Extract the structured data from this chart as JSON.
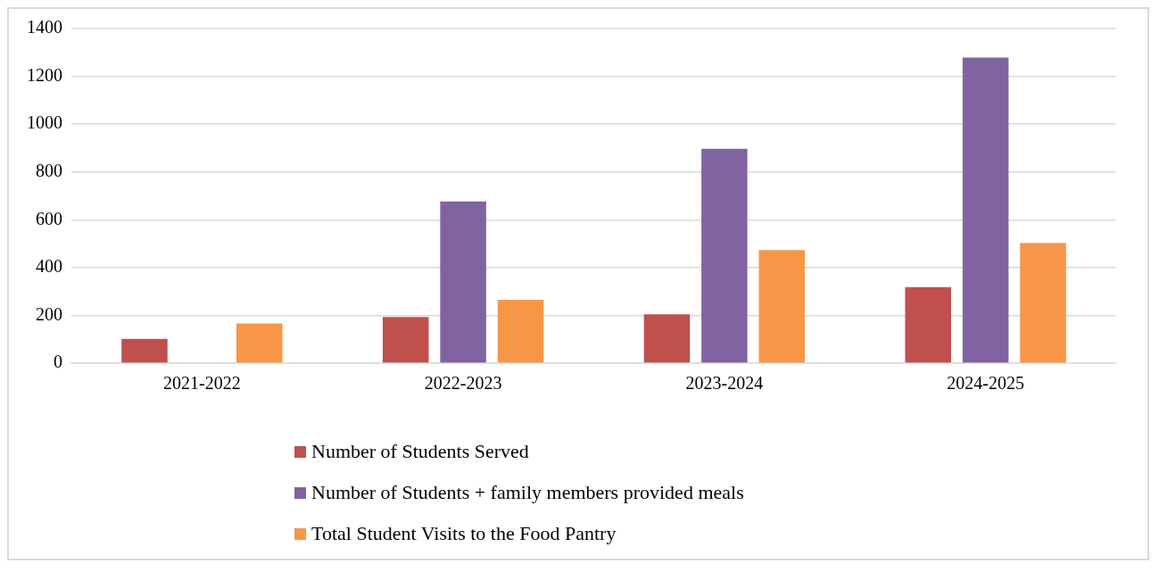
{
  "chart_data": {
    "type": "bar",
    "categories": [
      "2021-2022",
      "2022-2023",
      "2023-2024",
      "2024-2025"
    ],
    "series": [
      {
        "name": "Number of Students Served",
        "color": "#c0504d",
        "values": [
          102,
          193,
          204,
          318
        ]
      },
      {
        "name": "Number of Students + family members provided meals",
        "color": "#8064a2",
        "values": [
          null,
          677,
          897,
          1279
        ]
      },
      {
        "name": "Total Student Visits to the Food Pantry",
        "color": "#f79646",
        "values": [
          166,
          265,
          473,
          503
        ]
      }
    ],
    "ylim": [
      0,
      1400
    ],
    "yticks": [
      0,
      200,
      400,
      600,
      800,
      1000,
      1200,
      1400
    ],
    "grid": "y",
    "legend": "bottom"
  }
}
